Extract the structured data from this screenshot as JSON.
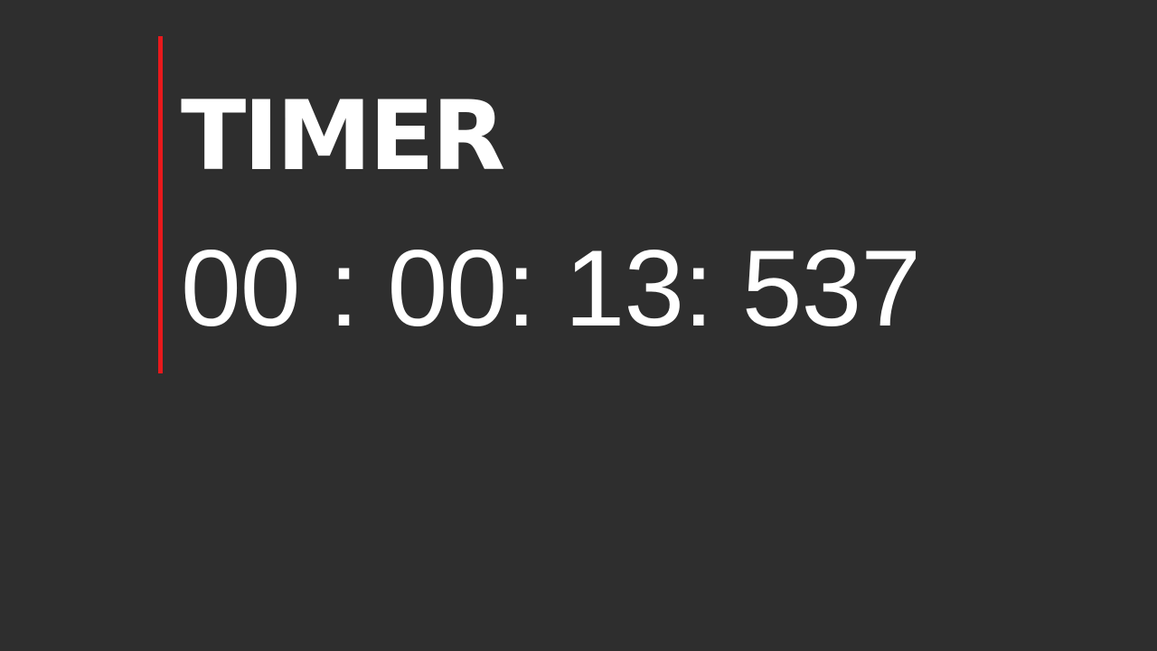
{
  "timer": {
    "title": "TIMER",
    "readout": "00 : 00: 13: 537"
  },
  "colors": {
    "background": "#2e2e2e",
    "accent": "#e8191c",
    "text": "#ffffff"
  }
}
